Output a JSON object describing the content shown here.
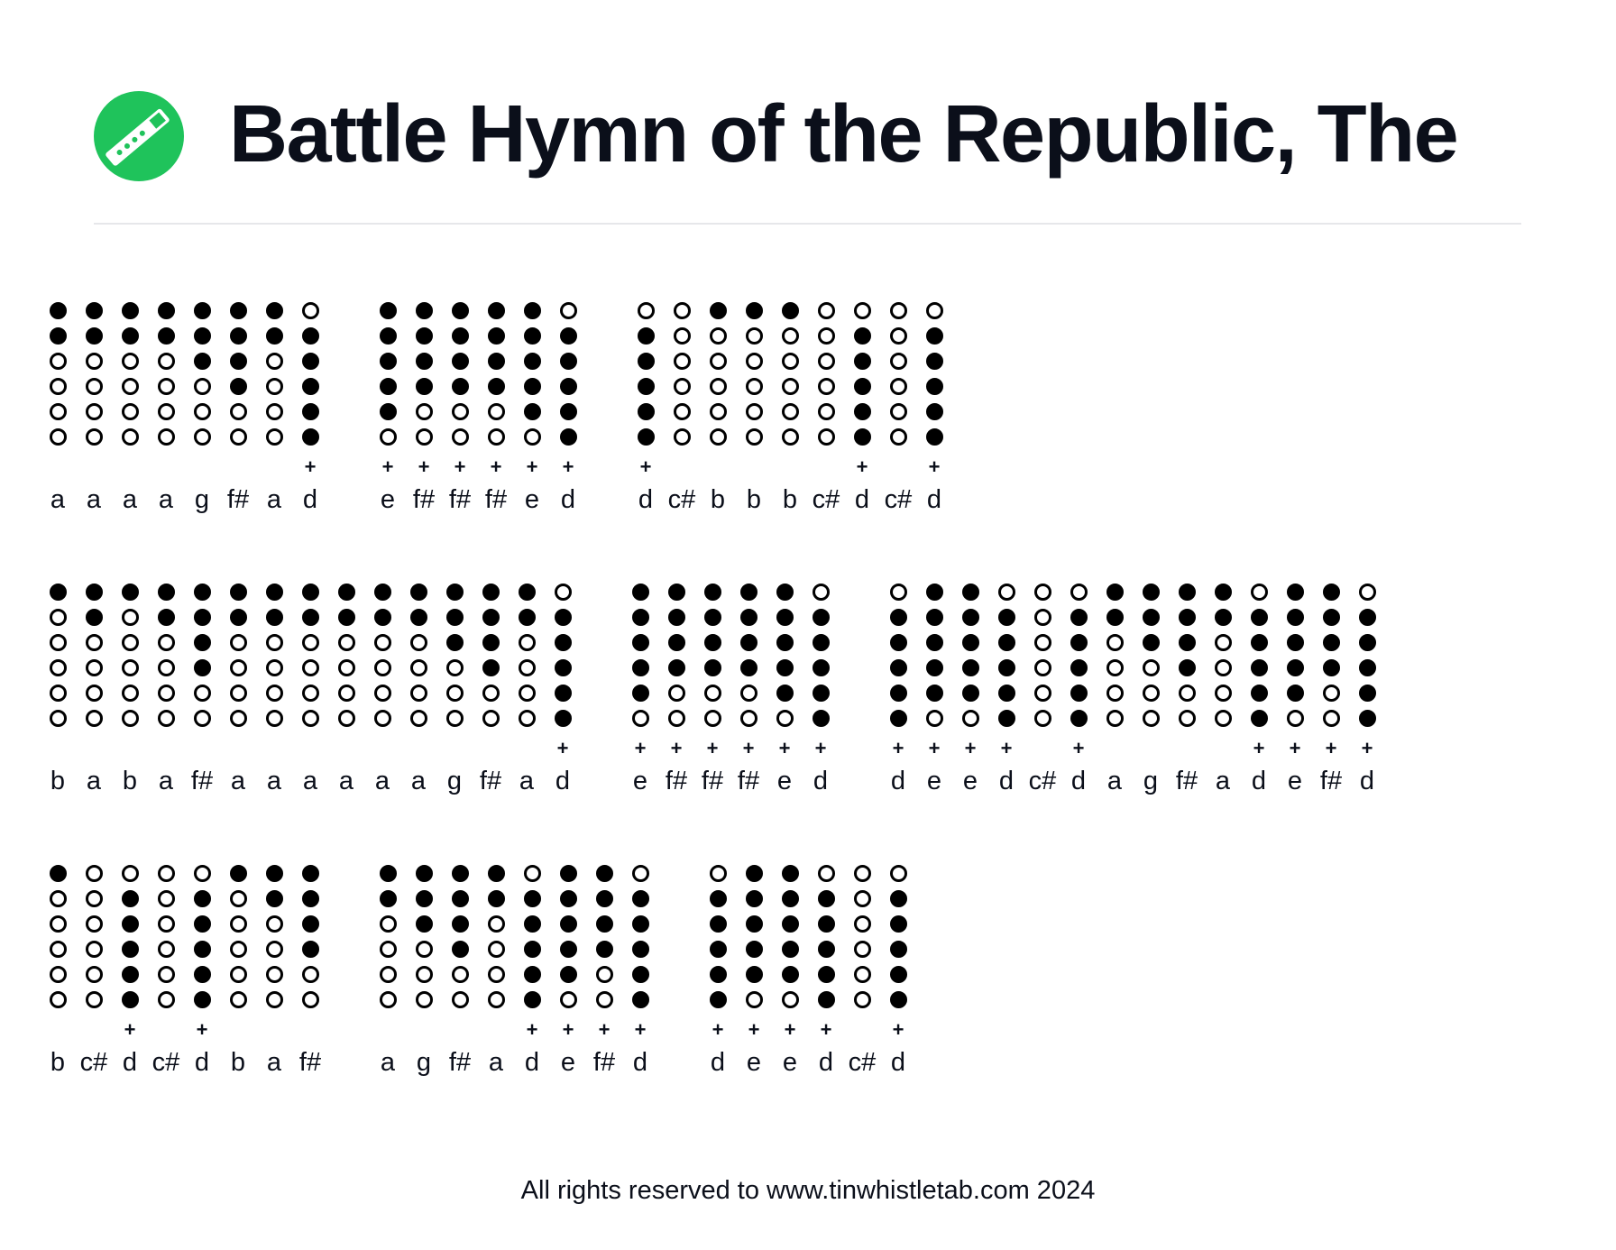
{
  "header": {
    "title": "Battle Hymn of the Republic, The",
    "logo_icon": "tin-whistle-icon",
    "logo_color": "#1fc35b"
  },
  "fingerings": {
    "d": [
      0,
      1,
      1,
      1,
      1,
      1
    ],
    "c#": [
      0,
      0,
      0,
      0,
      0,
      0
    ],
    "b": [
      1,
      0,
      0,
      0,
      0,
      0
    ],
    "a": [
      1,
      1,
      0,
      0,
      0,
      0
    ],
    "g": [
      1,
      1,
      1,
      0,
      0,
      0
    ],
    "f#": [
      1,
      1,
      1,
      1,
      0,
      0
    ],
    "e": [
      1,
      1,
      1,
      1,
      1,
      0
    ]
  },
  "octave_marker": "+",
  "lines": [
    [
      [
        [
          "a",
          0
        ],
        [
          "a",
          0
        ],
        [
          "a",
          0
        ],
        [
          "a",
          0
        ],
        [
          "g",
          0
        ],
        [
          "f#",
          0
        ],
        [
          "a",
          0
        ],
        [
          "d",
          1
        ]
      ],
      [
        [
          "e",
          1
        ],
        [
          "f#",
          1
        ],
        [
          "f#",
          1
        ],
        [
          "f#",
          1
        ],
        [
          "e",
          1
        ],
        [
          "d",
          1
        ]
      ],
      [
        [
          "d",
          1
        ],
        [
          "c#",
          0
        ],
        [
          "b",
          0
        ],
        [
          "b",
          0
        ],
        [
          "b",
          0
        ],
        [
          "c#",
          0
        ],
        [
          "d",
          1
        ],
        [
          "c#",
          0
        ],
        [
          "d",
          1
        ]
      ]
    ],
    [
      [
        [
          "b",
          0
        ],
        [
          "a",
          0
        ],
        [
          "b",
          0
        ],
        [
          "a",
          0
        ],
        [
          "f#",
          0
        ],
        [
          "a",
          0
        ],
        [
          "a",
          0
        ],
        [
          "a",
          0
        ],
        [
          "a",
          0
        ],
        [
          "a",
          0
        ],
        [
          "a",
          0
        ],
        [
          "g",
          0
        ],
        [
          "f#",
          0
        ],
        [
          "a",
          0
        ],
        [
          "d",
          1
        ]
      ],
      [
        [
          "e",
          1
        ],
        [
          "f#",
          1
        ],
        [
          "f#",
          1
        ],
        [
          "f#",
          1
        ],
        [
          "e",
          1
        ],
        [
          "d",
          1
        ]
      ],
      [
        [
          "d",
          1
        ],
        [
          "e",
          1
        ],
        [
          "e",
          1
        ],
        [
          "d",
          1
        ],
        [
          "c#",
          0
        ],
        [
          "d",
          1
        ],
        [
          "a",
          0
        ],
        [
          "g",
          0
        ],
        [
          "f#",
          0
        ],
        [
          "a",
          0
        ],
        [
          "d",
          1
        ],
        [
          "e",
          1
        ],
        [
          "f#",
          1
        ],
        [
          "d",
          1
        ]
      ]
    ],
    [
      [
        [
          "b",
          0
        ],
        [
          "c#",
          0
        ],
        [
          "d",
          1
        ],
        [
          "c#",
          0
        ],
        [
          "d",
          1
        ],
        [
          "b",
          0
        ],
        [
          "a",
          0
        ],
        [
          "f#",
          0
        ]
      ],
      [
        [
          "a",
          0
        ],
        [
          "g",
          0
        ],
        [
          "f#",
          0
        ],
        [
          "a",
          0
        ],
        [
          "d",
          1
        ],
        [
          "e",
          1
        ],
        [
          "f#",
          1
        ],
        [
          "d",
          1
        ]
      ],
      [
        [
          "d",
          1
        ],
        [
          "e",
          1
        ],
        [
          "e",
          1
        ],
        [
          "d",
          1
        ],
        [
          "c#",
          0
        ],
        [
          "d",
          1
        ]
      ]
    ]
  ],
  "footer": {
    "text": "All rights reserved to www.tinwhistletab.com 2024"
  }
}
